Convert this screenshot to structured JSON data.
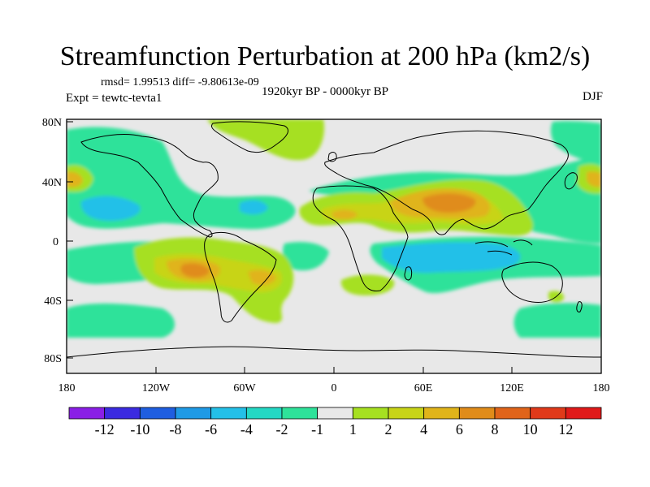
{
  "header": {
    "title": "Streamfunction Perturbation at 200 hPa (km2/s)",
    "stats": "rmsd= 1.99513 diff= -9.80613e-09",
    "experiment": "Expt = tewtc-tevta1",
    "period": "1920kyr BP - 0000kyr BP",
    "season": "DJF"
  },
  "axes": {
    "lon_labels": [
      "180",
      "120W",
      "60W",
      "0",
      "60E",
      "120E",
      "180"
    ],
    "lat_labels": [
      "80N",
      "40N",
      "0",
      "40S",
      "80S"
    ]
  },
  "colorbar": {
    "labels": [
      "-12",
      "-10",
      "-8",
      "-6",
      "-4",
      "-2",
      "-1",
      "1",
      "2",
      "4",
      "6",
      "8",
      "10",
      "12"
    ],
    "colors": [
      "#8a1fe6",
      "#3b2be0",
      "#1f5ee0",
      "#1f9ae6",
      "#24c0e8",
      "#24d8c4",
      "#2ee29a",
      "#e8e8e8",
      "#a6e021",
      "#c8d418",
      "#e0b41a",
      "#e08c1a",
      "#e0641a",
      "#e03a1a",
      "#e01a1a"
    ]
  },
  "map_colors": {
    "background": "#e8e8e8",
    "green_neg1": "#2ee29a",
    "teal_neg2": "#24d8c4",
    "cyan_neg4": "#24c0e8",
    "lime_pos1": "#a6e021",
    "olive_pos2": "#c8d418",
    "orange_pos4": "#e0b41a",
    "dark_orange_pos6": "#e08c1a"
  }
}
